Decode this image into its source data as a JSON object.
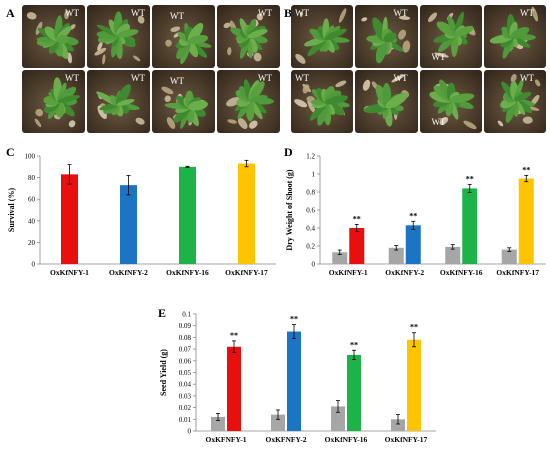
{
  "panels": {
    "a": "A",
    "b": "B",
    "c": "C",
    "d": "D",
    "e": "E"
  },
  "photo_a": {
    "labels": [
      "WT",
      "WT",
      "WT",
      "WT",
      "WT",
      "WT",
      "WT",
      "WT"
    ]
  },
  "photo_b": {
    "labels": [
      "WT",
      "WT",
      "WT",
      "WT",
      "WT",
      "WT",
      "WT",
      "WT"
    ]
  },
  "colors": {
    "line1": "#e8100f",
    "line2": "#1b74c4",
    "line16": "#1db349",
    "line17": "#ffc400",
    "wt": "#a6a6a6"
  },
  "chart_data": [
    {
      "id": "C",
      "type": "bar",
      "categories": [
        "OxKfNFY-1",
        "OxKfNFY-2",
        "OxKfNFY-16",
        "OxKfNFY-17"
      ],
      "series": [
        {
          "values": [
            83,
            73,
            90,
            93
          ],
          "errors": [
            9,
            9,
            0.5,
            3
          ]
        }
      ],
      "ylabel": "Survival (%)",
      "ylim": [
        0,
        100
      ],
      "yticks": [
        "0",
        "20",
        "40",
        "60",
        "80",
        "100"
      ],
      "grid": false
    },
    {
      "id": "D",
      "type": "bar",
      "categories": [
        "OxKfNFY-1",
        "OxKfNFY-2",
        "OxKfNFY-16",
        "OxKfNFY-17"
      ],
      "series": [
        {
          "values": [
            0.13,
            0.18,
            0.19,
            0.16
          ],
          "errors": [
            0.025,
            0.025,
            0.025,
            0.02
          ]
        },
        {
          "values": [
            0.4,
            0.43,
            0.84,
            0.95
          ],
          "errors": [
            0.04,
            0.045,
            0.045,
            0.035
          ]
        }
      ],
      "annotations": [
        "**",
        "**",
        "**",
        "**",
        "**",
        "**",
        "**",
        "**"
      ],
      "ylabel": "Dry Weight of Shoot (g)",
      "ylim": [
        0,
        1.2
      ],
      "yticks": [
        "0",
        "0.2",
        "0.4",
        "0.6",
        "0.8",
        "1",
        "1.2"
      ],
      "grid": false
    },
    {
      "id": "E",
      "type": "bar",
      "categories": [
        "OxKFNFY-1",
        "OxKFNFY-2",
        "OxKfNFY-16",
        "OxKfNFY-17"
      ],
      "series": [
        {
          "values": [
            0.012,
            0.014,
            0.021,
            0.01
          ],
          "errors": [
            0.003,
            0.004,
            0.005,
            0.004
          ]
        },
        {
          "values": [
            0.072,
            0.085,
            0.065,
            0.078
          ],
          "errors": [
            0.005,
            0.006,
            0.004,
            0.006
          ]
        }
      ],
      "annotations": [
        "**",
        "**",
        "**",
        "**",
        "**",
        "**",
        "**",
        "**"
      ],
      "ylabel": "Seed Yield (g)",
      "ylim": [
        0,
        0.1
      ],
      "yticks": [
        "0",
        "0.01",
        "0.02",
        "0.03",
        "0.04",
        "0.05",
        "0.06",
        "0.07",
        "0.08",
        "0.09",
        "0.1"
      ],
      "grid": false
    }
  ]
}
